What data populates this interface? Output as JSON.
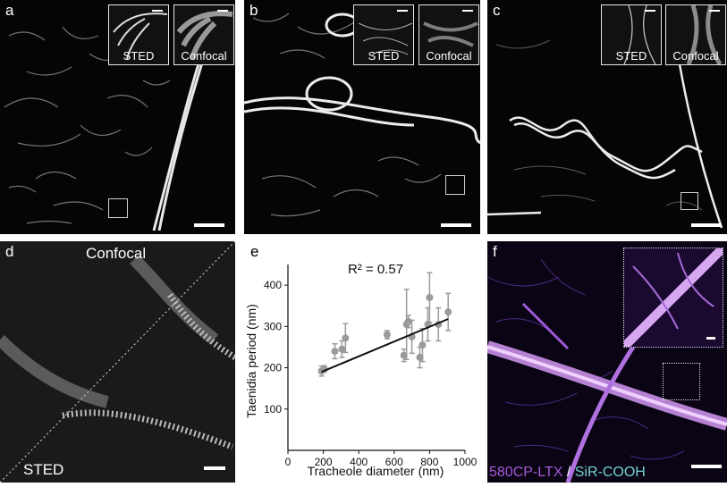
{
  "panels": {
    "a": {
      "label": "a",
      "insets": [
        "STED",
        "Confocal"
      ]
    },
    "b": {
      "label": "b",
      "insets": [
        "STED",
        "Confocal"
      ]
    },
    "c": {
      "label": "c",
      "insets": [
        "STED",
        "Confocal"
      ]
    },
    "d": {
      "label": "d",
      "top_text": "Confocal",
      "bottom_text": "STED"
    },
    "e": {
      "label": "e"
    },
    "f": {
      "label": "f",
      "caption_part1": "580CP-LTX",
      "caption_sep": " / ",
      "caption_part2": "SiR-COOH"
    }
  },
  "colors": {
    "marker": "#9a9a9a",
    "fit_line": "#111111",
    "caption_magenta": "#a65ad8",
    "caption_cyan": "#74d3d3"
  },
  "chart_data": {
    "type": "scatter",
    "title": "",
    "xlabel": "Tracheole diameter (nm)",
    "ylabel": "Taenidia period (nm)",
    "annotation": "R² = 0.57",
    "xlim": [
      0,
      1000
    ],
    "ylim": [
      0,
      450
    ],
    "xticks": [
      0,
      200,
      400,
      600,
      800,
      1000
    ],
    "yticks": [
      100,
      200,
      300,
      400
    ],
    "points": [
      {
        "x": 190,
        "y": 192,
        "err": 12
      },
      {
        "x": 205,
        "y": 197,
        "err": 8
      },
      {
        "x": 265,
        "y": 240,
        "err": 18
      },
      {
        "x": 305,
        "y": 245,
        "err": 20
      },
      {
        "x": 325,
        "y": 272,
        "err": 35
      },
      {
        "x": 560,
        "y": 280,
        "err": 10
      },
      {
        "x": 655,
        "y": 230,
        "err": 15
      },
      {
        "x": 670,
        "y": 305,
        "err": 85
      },
      {
        "x": 680,
        "y": 312,
        "err": 15
      },
      {
        "x": 700,
        "y": 275,
        "err": 40
      },
      {
        "x": 745,
        "y": 225,
        "err": 25
      },
      {
        "x": 760,
        "y": 255,
        "err": 40
      },
      {
        "x": 790,
        "y": 305,
        "err": 40
      },
      {
        "x": 800,
        "y": 370,
        "err": 60
      },
      {
        "x": 850,
        "y": 305,
        "err": 40
      },
      {
        "x": 905,
        "y": 335,
        "err": 45
      }
    ],
    "fit": {
      "x": [
        190,
        905
      ],
      "y": [
        190,
        318
      ]
    },
    "grid": false,
    "legend": "none"
  }
}
